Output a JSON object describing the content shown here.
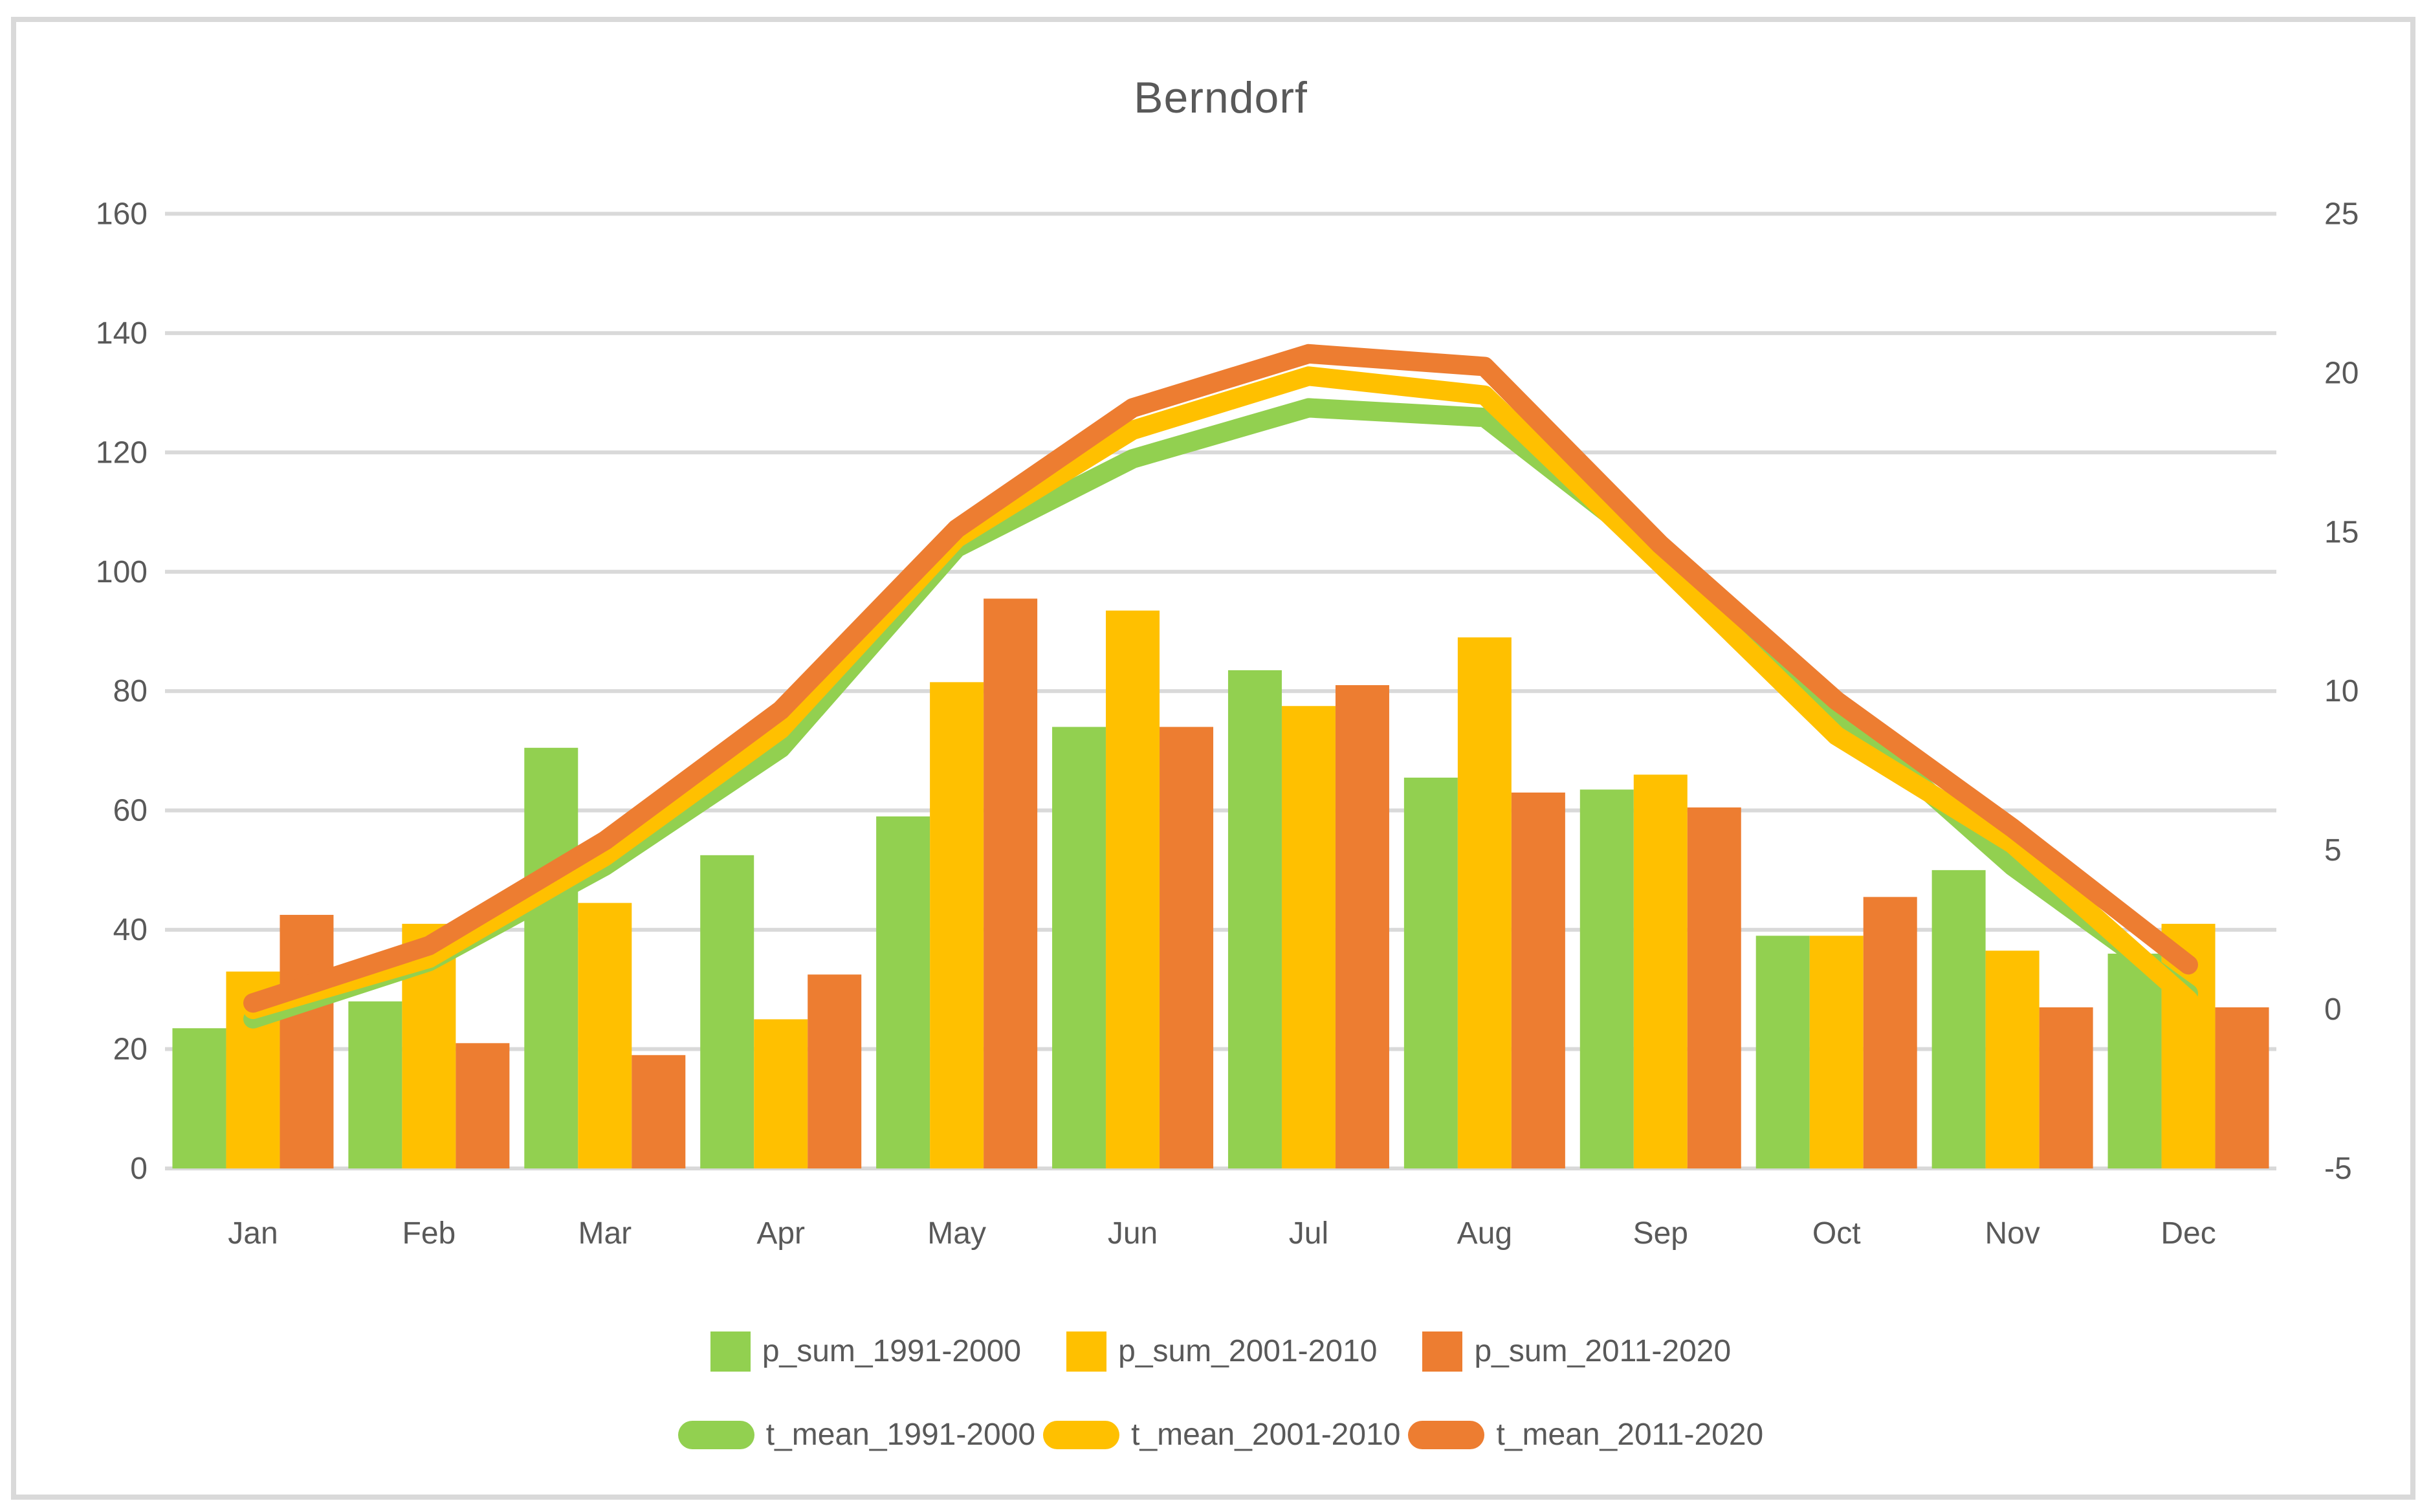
{
  "chart_data": {
    "type": "combo-bar-line",
    "title": "Berndorf",
    "categories": [
      "Jan",
      "Feb",
      "Mar",
      "Apr",
      "May",
      "Jun",
      "Jul",
      "Aug",
      "Sep",
      "Oct",
      "Nov",
      "Dec"
    ],
    "bar_series": [
      {
        "name": "p_sum_1991-2000",
        "color": "#92D050",
        "values": [
          23.5,
          28,
          70.5,
          52.5,
          59,
          74,
          83.5,
          65.5,
          63.5,
          39,
          50,
          36
        ]
      },
      {
        "name": "p_sum_2001-2010",
        "color": "#FFC000",
        "values": [
          33,
          41,
          44.5,
          25,
          81.5,
          93.5,
          77.5,
          89,
          66,
          39,
          36.5,
          41
        ]
      },
      {
        "name": "p_sum_2011-2020",
        "color": "#ED7D31",
        "values": [
          42.5,
          21,
          19,
          32.5,
          95.5,
          74,
          81,
          63,
          60.5,
          45.5,
          27,
          27
        ]
      }
    ],
    "line_series": [
      {
        "name": "t_mean_1991-2000",
        "color": "#92D050",
        "values": [
          -0.3,
          1.5,
          4.5,
          8.2,
          14.5,
          17.3,
          18.9,
          18.6,
          14.3,
          9.4,
          4.5,
          0.5
        ]
      },
      {
        "name": "t_mean_2001-2010",
        "color": "#FFC000",
        "values": [
          0.0,
          1.6,
          4.8,
          8.8,
          14.8,
          18.2,
          19.9,
          19.3,
          14.0,
          8.6,
          5.2,
          0.3
        ]
      },
      {
        "name": "t_mean_2011-2020",
        "color": "#ED7D31",
        "values": [
          0.2,
          2.0,
          5.3,
          9.4,
          15.1,
          18.9,
          20.6,
          20.2,
          14.6,
          9.7,
          5.7,
          1.4
        ]
      }
    ],
    "left_axis": {
      "min": 0,
      "max": 160,
      "tick_labels": [
        "0",
        "20",
        "40",
        "60",
        "80",
        "100",
        "120",
        "140",
        "160"
      ]
    },
    "right_axis": {
      "min": -5,
      "max": 25,
      "tick_labels": [
        "-5",
        "0",
        "5",
        "10",
        "15",
        "20",
        "25"
      ]
    },
    "grid": true,
    "legend_position": "bottom",
    "text_color": "#595959",
    "grid_color": "#D9D9D9"
  }
}
